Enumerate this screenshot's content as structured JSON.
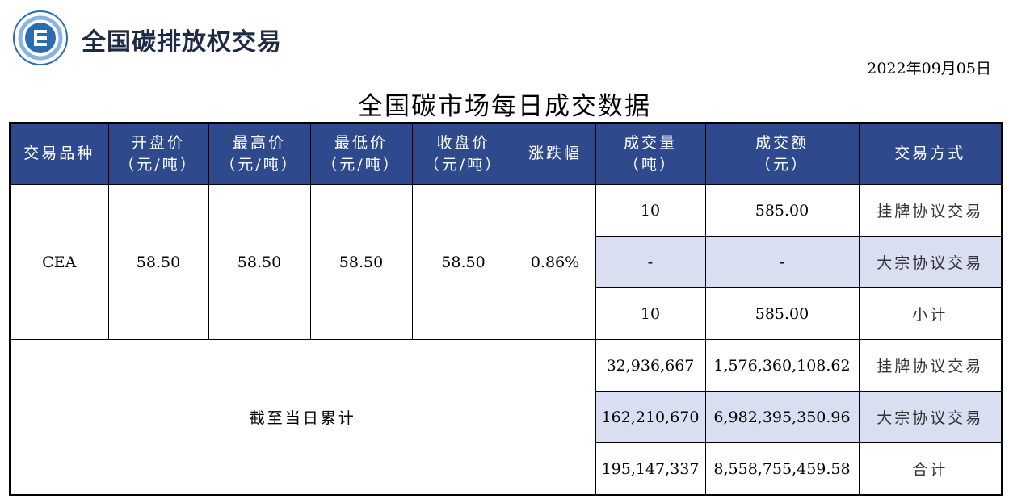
{
  "brand": {
    "name": "全国碳排放权交易"
  },
  "report": {
    "date": "2022年09月05日",
    "title": "全国碳市场每日成交数据"
  },
  "table": {
    "headers": {
      "product": "交易品种",
      "open": [
        "开盘价",
        "（元/吨）"
      ],
      "high": [
        "最高价",
        "（元/吨）"
      ],
      "low": [
        "最低价",
        "（元/吨）"
      ],
      "close": [
        "收盘价",
        "（元/吨）"
      ],
      "change": "涨跌幅",
      "volume": [
        "成交量",
        "（吨）"
      ],
      "amount": [
        "成交额",
        "（元）"
      ],
      "method": "交易方式"
    },
    "daily": {
      "product": "CEA",
      "open": "58.50",
      "high": "58.50",
      "low": "58.50",
      "close": "58.50",
      "change": "0.86%",
      "rows": [
        {
          "volume": "10",
          "amount": "585.00",
          "method": "挂牌协议交易"
        },
        {
          "volume": "-",
          "amount": "-",
          "method": "大宗协议交易"
        },
        {
          "volume": "10",
          "amount": "585.00",
          "method": "小计"
        }
      ]
    },
    "cumulative": {
      "label": "截至当日累计",
      "rows": [
        {
          "volume": "32,936,667",
          "amount": "1,576,360,108.62",
          "method": "挂牌协议交易"
        },
        {
          "volume": "162,210,670",
          "amount": "6,982,395,350.96",
          "method": "大宗协议交易"
        },
        {
          "volume": "195,147,337",
          "amount": "8,558,755,459.58",
          "method": "合计"
        }
      ]
    }
  },
  "colors": {
    "header_bg": "#2e4a8c",
    "shade_bg": "#d9def0",
    "brand_text": "#1f2a44"
  }
}
